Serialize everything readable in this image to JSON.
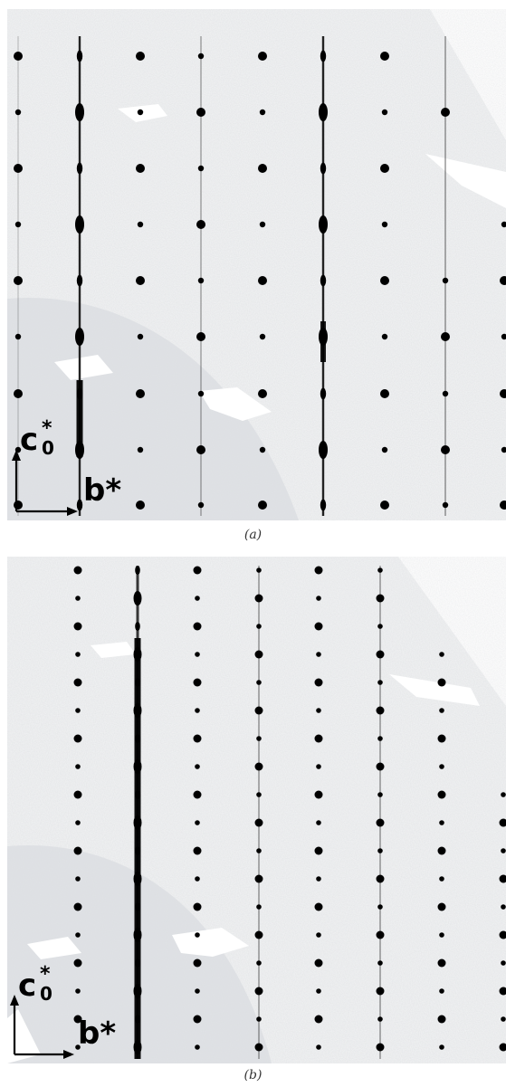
{
  "panels": [
    {
      "id": "a",
      "caption": "(a)",
      "axis_labels": {
        "vertical": "c",
        "vertical_sub": "0",
        "vertical_sup": "*",
        "horizontal": "b*"
      }
    },
    {
      "id": "b",
      "caption": "(b)",
      "axis_labels": {
        "vertical": "c",
        "vertical_sub": "0",
        "vertical_sup": "*",
        "horizontal": "b*"
      }
    }
  ],
  "colors": {
    "background": "#ffffff",
    "noise": "#e6e8ea",
    "spot": "#000000",
    "streak": "#111111"
  }
}
